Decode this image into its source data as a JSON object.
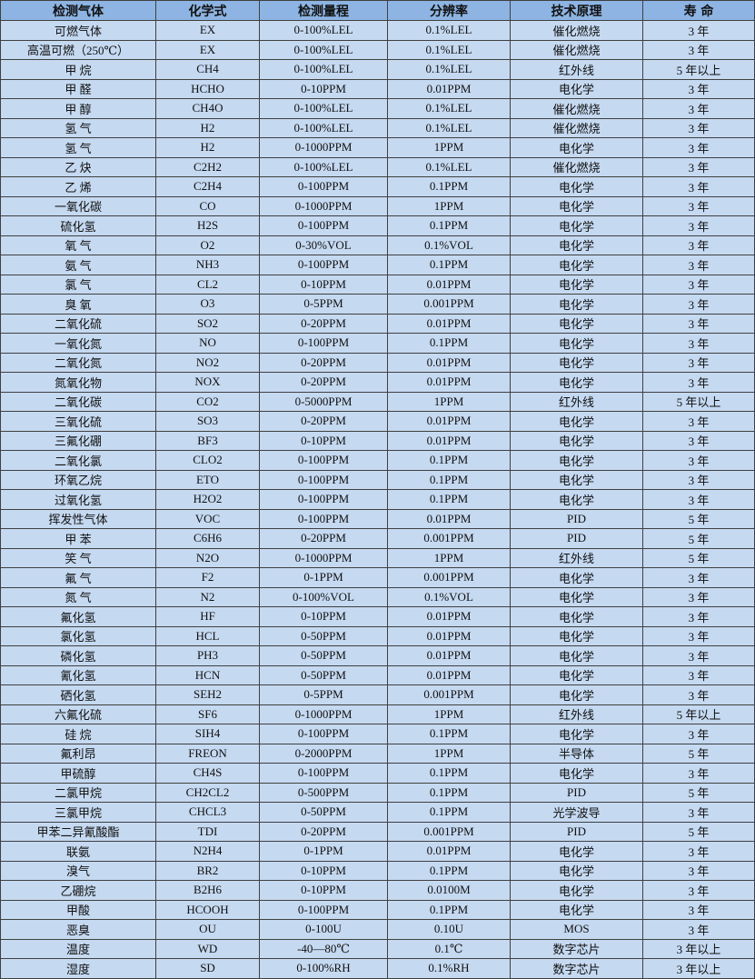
{
  "headers": [
    "检测气体",
    "化学式",
    "检测量程",
    "分辨率",
    "技术原理",
    "寿 命"
  ],
  "colors": {
    "header_bg": "#8DB4E2",
    "row_bg": "#C5D9F1",
    "border": "#404040"
  },
  "rows": [
    [
      "可燃气体",
      "EX",
      "0-100%LEL",
      "0.1%LEL",
      "催化燃烧",
      "3 年"
    ],
    [
      "高温可燃（250℃）",
      "EX",
      "0-100%LEL",
      "0.1%LEL",
      "催化燃烧",
      "3 年"
    ],
    [
      "甲 烷",
      "CH4",
      "0-100%LEL",
      "0.1%LEL",
      "红外线",
      "5 年以上"
    ],
    [
      "甲 醛",
      "HCHO",
      "0-10PPM",
      "0.01PPM",
      "电化学",
      "3 年"
    ],
    [
      "甲 醇",
      "CH4O",
      "0-100%LEL",
      "0.1%LEL",
      "催化燃烧",
      "3 年"
    ],
    [
      "氢 气",
      "H2",
      "0-100%LEL",
      "0.1%LEL",
      "催化燃烧",
      "3 年"
    ],
    [
      "氢 气",
      "H2",
      "0-1000PPM",
      "1PPM",
      "电化学",
      "3 年"
    ],
    [
      "乙 炔",
      "C2H2",
      "0-100%LEL",
      "0.1%LEL",
      "催化燃烧",
      "3 年"
    ],
    [
      "乙 烯",
      "C2H4",
      "0-100PPM",
      "0.1PPM",
      "电化学",
      "3 年"
    ],
    [
      "一氧化碳",
      "CO",
      "0-1000PPM",
      "1PPM",
      "电化学",
      "3 年"
    ],
    [
      "硫化氢",
      "H2S",
      "0-100PPM",
      "0.1PPM",
      "电化学",
      "3 年"
    ],
    [
      "氧 气",
      "O2",
      "0-30%VOL",
      "0.1%VOL",
      "电化学",
      "3 年"
    ],
    [
      "氨 气",
      "NH3",
      "0-100PPM",
      "0.1PPM",
      "电化学",
      "3 年"
    ],
    [
      "氯 气",
      "CL2",
      "0-10PPM",
      "0.01PPM",
      "电化学",
      "3 年"
    ],
    [
      "臭 氧",
      "O3",
      "0-5PPM",
      "0.001PPM",
      "电化学",
      "3 年"
    ],
    [
      "二氧化硫",
      "SO2",
      "0-20PPM",
      "0.01PPM",
      "电化学",
      "3 年"
    ],
    [
      "一氧化氮",
      "NO",
      "0-100PPM",
      "0.1PPM",
      "电化学",
      "3 年"
    ],
    [
      "二氧化氮",
      "NO2",
      "0-20PPM",
      "0.01PPM",
      "电化学",
      "3 年"
    ],
    [
      "氮氧化物",
      "NOX",
      "0-20PPM",
      "0.01PPM",
      "电化学",
      "3 年"
    ],
    [
      "二氧化碳",
      "CO2",
      "0-5000PPM",
      "1PPM",
      "红外线",
      "5 年以上"
    ],
    [
      "三氧化硫",
      "SO3",
      "0-20PPM",
      "0.01PPM",
      "电化学",
      "3 年"
    ],
    [
      "三氟化硼",
      "BF3",
      "0-10PPM",
      "0.01PPM",
      "电化学",
      "3 年"
    ],
    [
      "二氧化氯",
      "CLO2",
      "0-100PPM",
      "0.1PPM",
      "电化学",
      "3 年"
    ],
    [
      "环氧乙烷",
      "ETO",
      "0-100PPM",
      "0.1PPM",
      "电化学",
      "3 年"
    ],
    [
      "过氧化氢",
      "H2O2",
      "0-100PPM",
      "0.1PPM",
      "电化学",
      "3 年"
    ],
    [
      "挥发性气体",
      "VOC",
      "0-100PPM",
      "0.01PPM",
      "PID",
      "5 年"
    ],
    [
      "甲 苯",
      "C6H6",
      "0-20PPM",
      "0.001PPM",
      "PID",
      "5 年"
    ],
    [
      "笑 气",
      "N2O",
      "0-1000PPM",
      "1PPM",
      "红外线",
      "5 年"
    ],
    [
      "氟 气",
      "F2",
      "0-1PPM",
      "0.001PPM",
      "电化学",
      "3 年"
    ],
    [
      "氮 气",
      "N2",
      "0-100%VOL",
      "0.1%VOL",
      "电化学",
      "3 年"
    ],
    [
      "氟化氢",
      "HF",
      "0-10PPM",
      "0.01PPM",
      "电化学",
      "3 年"
    ],
    [
      "氯化氢",
      "HCL",
      "0-50PPM",
      "0.01PPM",
      "电化学",
      "3 年"
    ],
    [
      "磷化氢",
      "PH3",
      "0-50PPM",
      "0.01PPM",
      "电化学",
      "3 年"
    ],
    [
      "氰化氢",
      "HCN",
      "0-50PPM",
      "0.01PPM",
      "电化学",
      "3 年"
    ],
    [
      "硒化氢",
      "SEH2",
      "0-5PPM",
      "0.001PPM",
      "电化学",
      "3 年"
    ],
    [
      "六氟化硫",
      "SF6",
      "0-1000PPM",
      "1PPM",
      "红外线",
      "5 年以上"
    ],
    [
      "硅 烷",
      "SIH4",
      "0-100PPM",
      "0.1PPM",
      "电化学",
      "3 年"
    ],
    [
      "氟利昂",
      "FREON",
      "0-2000PPM",
      "1PPM",
      "半导体",
      "5 年"
    ],
    [
      "甲硫醇",
      "CH4S",
      "0-100PPM",
      "0.1PPM",
      "电化学",
      "3 年"
    ],
    [
      "二氯甲烷",
      "CH2CL2",
      "0-500PPM",
      "0.1PPM",
      "PID",
      "5 年"
    ],
    [
      "三氯甲烷",
      "CHCL3",
      "0-50PPM",
      "0.1PPM",
      "光学波导",
      "3 年"
    ],
    [
      "甲苯二异氰酸酯",
      "TDI",
      "0-20PPM",
      "0.001PPM",
      "PID",
      "5 年"
    ],
    [
      "联氨",
      "N2H4",
      "0-1PPM",
      "0.01PPM",
      "电化学",
      "3 年"
    ],
    [
      "溴气",
      "BR2",
      "0-10PPM",
      "0.1PPM",
      "电化学",
      "3 年"
    ],
    [
      "乙硼烷",
      "B2H6",
      "0-10PPM",
      "0.0100M",
      "电化学",
      "3 年"
    ],
    [
      "甲酸",
      "HCOOH",
      "0-100PPM",
      "0.1PPM",
      "电化学",
      "3 年"
    ],
    [
      "恶臭",
      "OU",
      "0-100U",
      "0.10U",
      "MOS",
      "3 年"
    ],
    [
      "温度",
      "WD",
      "-40—80℃",
      "0.1℃",
      "数字芯片",
      "3 年以上"
    ],
    [
      "湿度",
      "SD",
      "0-100%RH",
      "0.1%RH",
      "数字芯片",
      "3 年以上"
    ]
  ]
}
